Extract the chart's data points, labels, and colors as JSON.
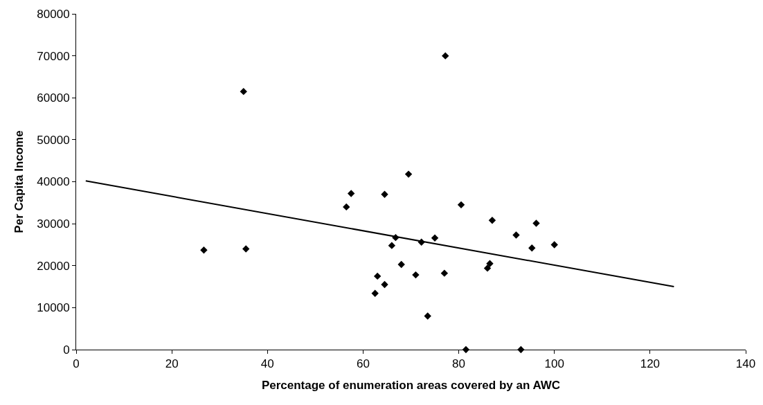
{
  "chart_data": {
    "type": "scatter",
    "xlabel": "Percentage of enumeration areas covered by an AWC",
    "ylabel": "Per Capita Income",
    "xlim": [
      0,
      140
    ],
    "xticks": [
      0,
      20,
      40,
      60,
      80,
      100,
      120,
      140
    ],
    "ylim": [
      0,
      80000
    ],
    "yticks": [
      0,
      10000,
      20000,
      30000,
      40000,
      50000,
      60000,
      70000,
      80000
    ],
    "grid": false,
    "marker": "diamond",
    "series": [
      {
        "color": "#000000",
        "x": [
          26.7,
          35,
          35.5,
          56.5,
          57.5,
          62.5,
          63,
          64.5,
          64.5,
          66,
          66.8,
          68,
          69.5,
          71,
          72.2,
          73.5,
          75,
          77,
          77.2,
          80.5,
          81.5,
          86,
          86.5,
          87,
          92,
          93,
          95.3,
          96.2,
          100
        ],
        "values": [
          23700,
          61500,
          24000,
          34000,
          37200,
          13400,
          17500,
          15500,
          37000,
          24800,
          26700,
          20300,
          41800,
          17800,
          25600,
          8000,
          26600,
          18200,
          70000,
          34500,
          0,
          19400,
          20500,
          30800,
          27300,
          0,
          24200,
          30100,
          25000
        ]
      },
      {
        "type": "line",
        "color": "#000000",
        "marker": "none",
        "line_style": "solid",
        "x": [
          2,
          125
        ],
        "values": [
          40200,
          15000
        ]
      }
    ]
  }
}
